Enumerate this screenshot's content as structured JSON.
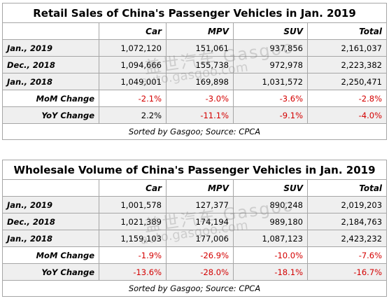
{
  "columns": [
    "Car",
    "MPV",
    "SUV",
    "Total"
  ],
  "retail": {
    "title": "Retail Sales of China's Passenger Vehicles in Jan. 2019",
    "rows": [
      {
        "label": "Jan., 2019",
        "values": [
          "1,072,120",
          "151,061",
          "937,856",
          "2,161,037"
        ]
      },
      {
        "label": "Dec., 2018",
        "values": [
          "1,094,666",
          "155,738",
          "972,978",
          "2,223,382"
        ]
      },
      {
        "label": "Jan., 2018",
        "values": [
          "1,049,001",
          "169,898",
          "1,031,572",
          "2,250,471"
        ]
      }
    ],
    "mom": {
      "label": "MoM Change",
      "values": [
        "-2.1%",
        "-3.0%",
        "-3.6%",
        "-2.8%"
      ]
    },
    "yoy": {
      "label": "YoY Change",
      "values": [
        "2.2%",
        "-11.1%",
        "-9.1%",
        "-4.0%"
      ]
    },
    "source": "Sorted by Gasgoo; Source: CPCA"
  },
  "wholesale": {
    "title": "Wholesale Volume of China's Passenger Vehicles in Jan. 2019",
    "rows": [
      {
        "label": "Jan., 2019",
        "values": [
          "1,001,578",
          "127,377",
          "890,248",
          "2,019,203"
        ]
      },
      {
        "label": "Dec., 2018",
        "values": [
          "1,021,389",
          "174,194",
          "989,180",
          "2,184,763"
        ]
      },
      {
        "label": "Jan., 2018",
        "values": [
          "1,159,103",
          "177,006",
          "1,087,123",
          "2,423,232"
        ]
      }
    ],
    "mom": {
      "label": "MoM Change",
      "values": [
        "-1.9%",
        "-26.9%",
        "-10.0%",
        "-7.6%"
      ]
    },
    "yoy": {
      "label": "YoY Change",
      "values": [
        "-13.6%",
        "-28.0%",
        "-18.1%",
        "-16.7%"
      ]
    },
    "source": "Sorted by Gasgoo; Source: CPCA"
  },
  "watermark": {
    "brand": "盖世汽车 Gasgoo",
    "url": "auto.gasgoo.com"
  },
  "colors": {
    "negative": "#d40000",
    "shade": "#efefef",
    "border": "#a6a6a6"
  }
}
